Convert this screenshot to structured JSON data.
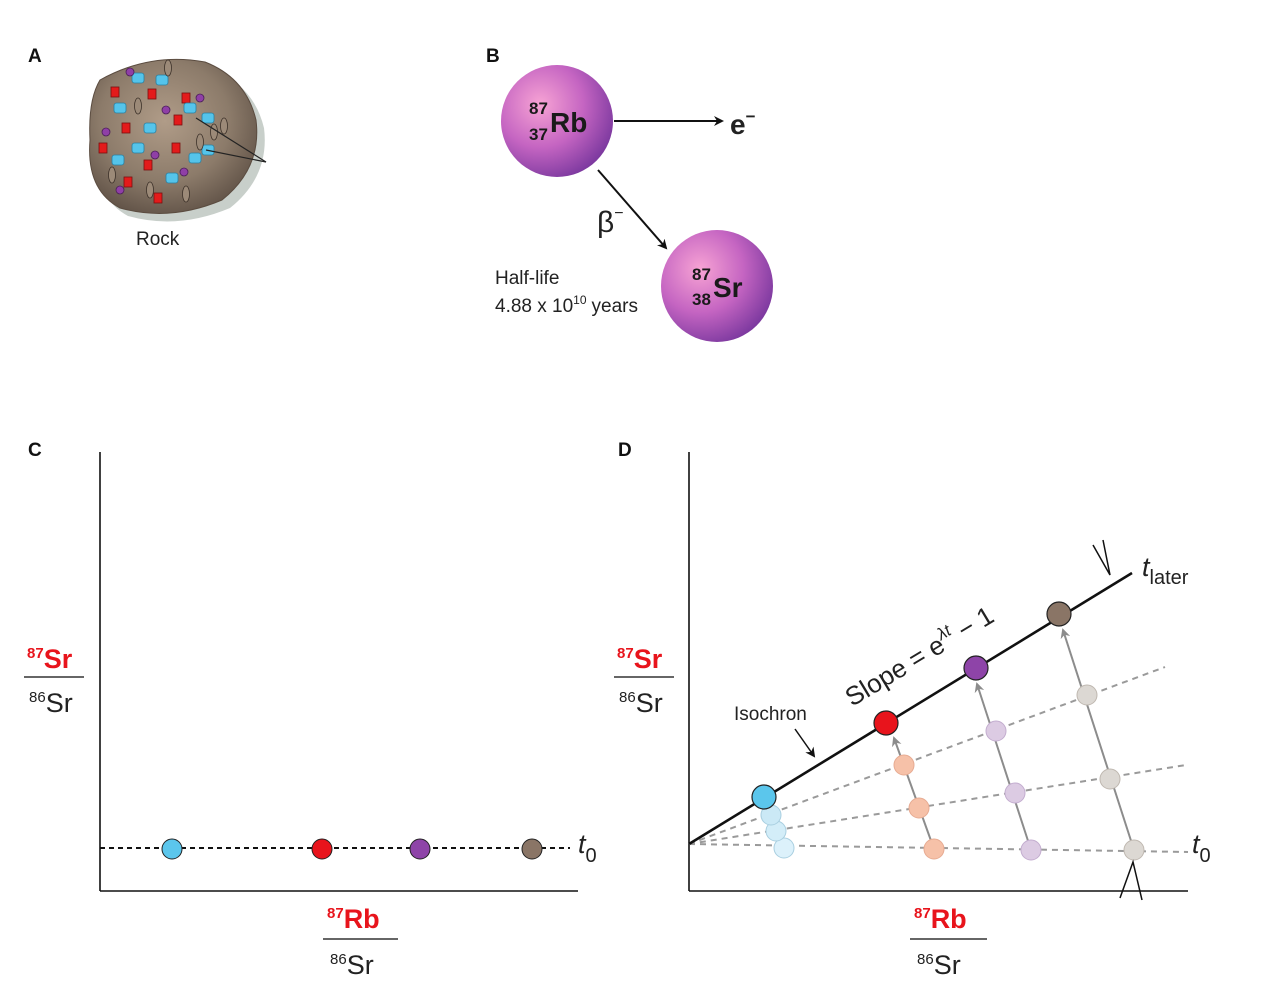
{
  "panels": {
    "A": {
      "letter": "A",
      "rock_label": "Rock"
    },
    "B": {
      "letter": "B",
      "parent": {
        "mass": "87",
        "atomic": "37",
        "symbol": "Rb"
      },
      "daughter": {
        "mass": "87",
        "atomic": "38",
        "symbol": "Sr"
      },
      "electron": "e",
      "electron_sup": "−",
      "beta": "β",
      "beta_sup": "−",
      "half_life_label": "Half-life",
      "half_life_base": "4.88 x 10",
      "half_life_exp": "10",
      "half_life_unit": "years"
    },
    "C": {
      "letter": "C",
      "y_num_mass": "87",
      "y_num_sym": "Sr",
      "y_den_mass": "86",
      "y_den_sym": "Sr",
      "x_num_mass": "87",
      "x_num_sym": "Rb",
      "x_den_mass": "86",
      "x_den_sym": "Sr",
      "t0_t": "t",
      "t0_sub": "0"
    },
    "D": {
      "letter": "D",
      "y_num_mass": "87",
      "y_num_sym": "Sr",
      "y_den_mass": "86",
      "y_den_sym": "Sr",
      "x_num_mass": "87",
      "x_num_sym": "Rb",
      "x_den_mass": "86",
      "x_den_sym": "Sr",
      "t0_t": "t",
      "t0_sub": "0",
      "tlater_t": "t",
      "tlater_sub": "later",
      "slope_text": "Slope = e",
      "slope_exp": "λt",
      "slope_tail": " − 1",
      "isochron_label": "Isochron"
    }
  },
  "colors": {
    "blue": "#5bc6ec",
    "red": "#e8141c",
    "purple": "#8e44a8",
    "brown": "#8a7566",
    "label_red": "#e8141c",
    "sphere_light": "#f38fc6",
    "sphere_dark": "#7e3aa0"
  }
}
